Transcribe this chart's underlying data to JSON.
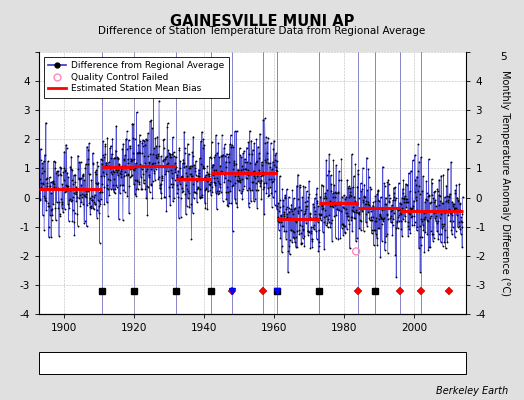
{
  "title": "GAINESVILLE MUNI AP",
  "subtitle": "Difference of Station Temperature Data from Regional Average",
  "ylabel": "Monthly Temperature Anomaly Difference (°C)",
  "credit": "Berkeley Earth",
  "ylim": [
    -4,
    5
  ],
  "yticks": [
    -4,
    -3,
    -2,
    -1,
    0,
    1,
    2,
    3,
    4,
    5
  ],
  "xlim": [
    1893,
    2015
  ],
  "xticks": [
    1900,
    1920,
    1940,
    1960,
    1980,
    2000
  ],
  "bg_color": "#e0e0e0",
  "plot_bg_color": "#ffffff",
  "line_color": "#3333cc",
  "dot_color": "#000000",
  "bias_color": "#ff0000",
  "qc_color": "#ff88bb",
  "vertical_line_color": "#8888cc",
  "segments": [
    {
      "x_start": 1893,
      "x_end": 1911,
      "bias": 0.3
    },
    {
      "x_start": 1911,
      "x_end": 1920,
      "bias": 1.05
    },
    {
      "x_start": 1920,
      "x_end": 1932,
      "bias": 1.1
    },
    {
      "x_start": 1932,
      "x_end": 1942,
      "bias": 0.65
    },
    {
      "x_start": 1942,
      "x_end": 1948,
      "bias": 0.85
    },
    {
      "x_start": 1948,
      "x_end": 1957,
      "bias": 0.85
    },
    {
      "x_start": 1957,
      "x_end": 1961,
      "bias": 0.85
    },
    {
      "x_start": 1961,
      "x_end": 1973,
      "bias": -0.75
    },
    {
      "x_start": 1973,
      "x_end": 1984,
      "bias": -0.2
    },
    {
      "x_start": 1984,
      "x_end": 1989,
      "bias": -0.35
    },
    {
      "x_start": 1989,
      "x_end": 1996,
      "bias": -0.35
    },
    {
      "x_start": 1996,
      "x_end": 2002,
      "bias": -0.45
    },
    {
      "x_start": 2002,
      "x_end": 2014,
      "bias": -0.45
    }
  ],
  "break_lines": [
    1911,
    1920,
    1932,
    1942,
    1948,
    1957,
    1961,
    1973,
    1984,
    1989,
    1996,
    2002
  ],
  "station_moves": [
    1948,
    1957,
    1984,
    1996,
    2002,
    2010
  ],
  "empirical_breaks": [
    1911,
    1920,
    1932,
    1942,
    1961,
    1973,
    1989
  ],
  "obs_changes": [
    1948,
    1961
  ],
  "record_gaps": [],
  "qc_failed": [
    [
      1983.5,
      -1.85
    ]
  ],
  "seed": 12345,
  "noise_std": 0.7
}
